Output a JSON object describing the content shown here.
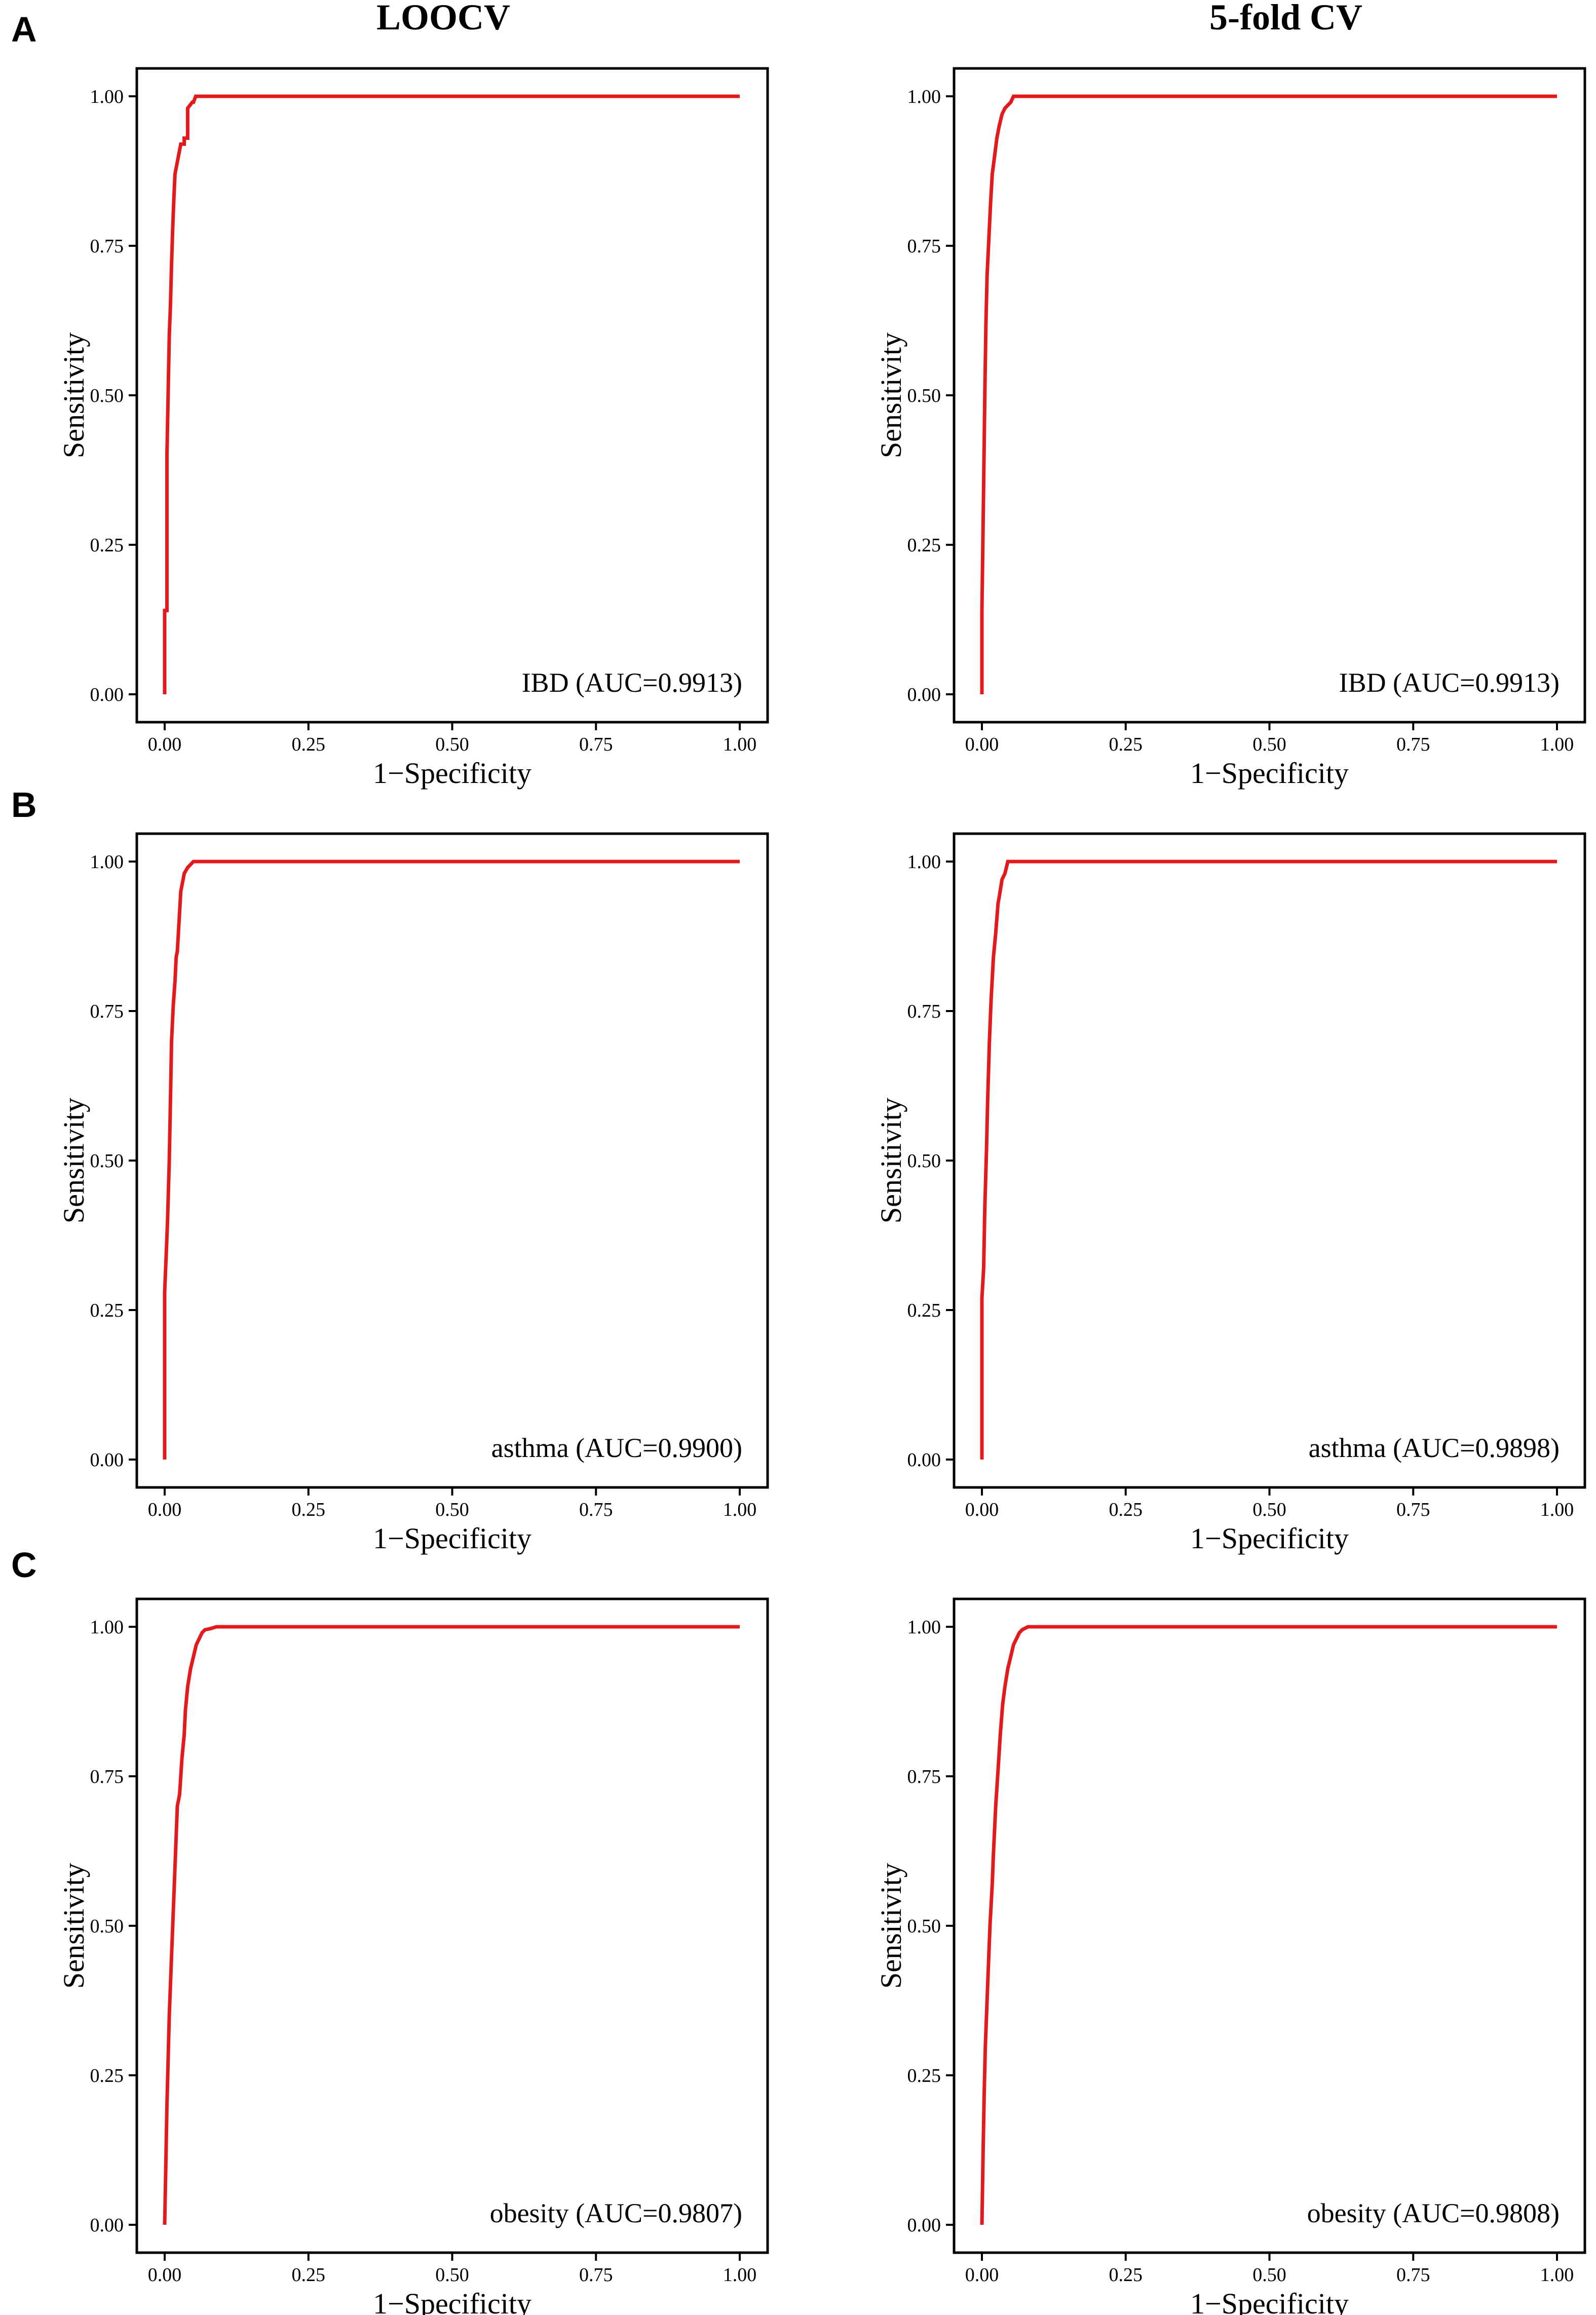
{
  "figure": {
    "column_titles": [
      "LOOCV",
      "5-fold CV"
    ],
    "row_labels": [
      "A",
      "B",
      "C"
    ],
    "line_color": "#e31a1c",
    "axis_color": "#000000"
  },
  "chart_data": [
    {
      "type": "line",
      "row": 0,
      "col": 0,
      "panel": "A",
      "annotation": "IBD (AUC=0.9913)",
      "xlabel": "1−Specificity",
      "ylabel": "Sensitivity",
      "xlim": [
        0,
        1
      ],
      "ylim": [
        0,
        1
      ],
      "xticks": [
        "0.00",
        "0.25",
        "0.50",
        "0.75",
        "1.00"
      ],
      "yticks": [
        "0.00",
        "0.25",
        "0.50",
        "0.75",
        "1.00"
      ],
      "grid": false,
      "series": [
        {
          "x": [
            0,
            0,
            0.004,
            0.004,
            0.006,
            0.008,
            0.01,
            0.012,
            0.014,
            0.016,
            0.018,
            0.02,
            0.024,
            0.028,
            0.034,
            0.034,
            0.04,
            0.04,
            0.048,
            0.05,
            0.052,
            0.054,
            1.0
          ],
          "y": [
            0,
            0.14,
            0.14,
            0.4,
            0.5,
            0.6,
            0.65,
            0.72,
            0.78,
            0.83,
            0.87,
            0.88,
            0.9,
            0.92,
            0.92,
            0.93,
            0.93,
            0.98,
            0.99,
            0.99,
            0.995,
            1.0,
            1.0
          ]
        }
      ]
    },
    {
      "type": "line",
      "row": 0,
      "col": 1,
      "annotation": "IBD (AUC=0.9913)",
      "xlabel": "1−Specificity",
      "ylabel": "Sensitivity",
      "xlim": [
        0,
        1
      ],
      "ylim": [
        0,
        1
      ],
      "xticks": [
        "0.00",
        "0.25",
        "0.50",
        "0.75",
        "1.00"
      ],
      "yticks": [
        "0.00",
        "0.25",
        "0.50",
        "0.75",
        "1.00"
      ],
      "grid": false,
      "series": [
        {
          "x": [
            0,
            0,
            0.003,
            0.005,
            0.007,
            0.009,
            0.012,
            0.015,
            0.018,
            0.022,
            0.026,
            0.03,
            0.035,
            0.04,
            0.05,
            0.055,
            1.0
          ],
          "y": [
            0,
            0.14,
            0.35,
            0.5,
            0.62,
            0.7,
            0.76,
            0.82,
            0.87,
            0.9,
            0.93,
            0.95,
            0.97,
            0.98,
            0.99,
            1.0,
            1.0
          ]
        }
      ]
    },
    {
      "type": "line",
      "row": 1,
      "col": 0,
      "panel": "B",
      "annotation": "asthma (AUC=0.9900)",
      "xlabel": "1−Specificity",
      "ylabel": "Sensitivity",
      "xlim": [
        0,
        1
      ],
      "ylim": [
        0,
        1
      ],
      "xticks": [
        "0.00",
        "0.25",
        "0.50",
        "0.75",
        "1.00"
      ],
      "yticks": [
        "0.00",
        "0.25",
        "0.50",
        "0.75",
        "1.00"
      ],
      "grid": false,
      "series": [
        {
          "x": [
            0,
            0,
            0.003,
            0.005,
            0.008,
            0.01,
            0.012,
            0.015,
            0.018,
            0.02,
            0.022,
            0.025,
            0.028,
            0.03,
            0.034,
            0.04,
            0.045,
            0.05,
            1.0
          ],
          "y": [
            0,
            0.28,
            0.35,
            0.4,
            0.5,
            0.6,
            0.7,
            0.76,
            0.8,
            0.84,
            0.85,
            0.9,
            0.95,
            0.96,
            0.98,
            0.99,
            0.995,
            1.0,
            1.0
          ]
        }
      ]
    },
    {
      "type": "line",
      "row": 1,
      "col": 1,
      "annotation": "asthma (AUC=0.9898)",
      "xlabel": "1−Specificity",
      "ylabel": "Sensitivity",
      "xlim": [
        0,
        1
      ],
      "ylim": [
        0,
        1
      ],
      "xticks": [
        "0.00",
        "0.25",
        "0.50",
        "0.75",
        "1.00"
      ],
      "yticks": [
        "0.00",
        "0.25",
        "0.50",
        "0.75",
        "1.00"
      ],
      "grid": false,
      "series": [
        {
          "x": [
            0,
            0,
            0.003,
            0.005,
            0.008,
            0.01,
            0.013,
            0.016,
            0.02,
            0.024,
            0.028,
            0.03,
            0.035,
            0.04,
            0.045,
            1.0
          ],
          "y": [
            0,
            0.27,
            0.32,
            0.42,
            0.52,
            0.6,
            0.7,
            0.77,
            0.84,
            0.88,
            0.93,
            0.94,
            0.97,
            0.98,
            1.0,
            1.0
          ]
        }
      ]
    },
    {
      "type": "line",
      "row": 2,
      "col": 0,
      "panel": "C",
      "annotation": "obesity (AUC=0.9807)",
      "xlabel": "1−Specificity",
      "ylabel": "Sensitivity",
      "xlim": [
        0,
        1
      ],
      "ylim": [
        0,
        1
      ],
      "xticks": [
        "0.00",
        "0.25",
        "0.50",
        "0.75",
        "1.00"
      ],
      "yticks": [
        "0.00",
        "0.25",
        "0.50",
        "0.75",
        "1.00"
      ],
      "grid": false,
      "series": [
        {
          "x": [
            0,
            0.002,
            0.004,
            0.008,
            0.012,
            0.016,
            0.02,
            0.022,
            0.026,
            0.03,
            0.034,
            0.036,
            0.04,
            0.045,
            0.05,
            0.055,
            0.06,
            0.065,
            0.07,
            0.08,
            0.09,
            0.1,
            1.0
          ],
          "y": [
            0,
            0.1,
            0.2,
            0.35,
            0.45,
            0.55,
            0.65,
            0.7,
            0.72,
            0.78,
            0.82,
            0.86,
            0.9,
            0.93,
            0.95,
            0.97,
            0.98,
            0.99,
            0.995,
            0.997,
            1.0,
            1.0,
            1.0
          ]
        }
      ]
    },
    {
      "type": "line",
      "row": 2,
      "col": 1,
      "annotation": "obesity (AUC=0.9808)",
      "xlabel": "1−Specificity",
      "ylabel": "Sensitivity",
      "xlim": [
        0,
        1
      ],
      "ylim": [
        0,
        1
      ],
      "xticks": [
        "0.00",
        "0.25",
        "0.50",
        "0.75",
        "1.00"
      ],
      "yticks": [
        "0.00",
        "0.25",
        "0.50",
        "0.75",
        "1.00"
      ],
      "grid": false,
      "series": [
        {
          "x": [
            0,
            0.002,
            0.004,
            0.006,
            0.01,
            0.014,
            0.018,
            0.02,
            0.024,
            0.028,
            0.032,
            0.036,
            0.04,
            0.045,
            0.05,
            0.055,
            0.06,
            0.065,
            0.07,
            0.08,
            0.09,
            1.0
          ],
          "y": [
            0,
            0.12,
            0.22,
            0.3,
            0.4,
            0.5,
            0.57,
            0.62,
            0.7,
            0.76,
            0.82,
            0.87,
            0.9,
            0.93,
            0.95,
            0.97,
            0.98,
            0.99,
            0.995,
            1.0,
            1.0,
            1.0
          ]
        }
      ]
    }
  ]
}
